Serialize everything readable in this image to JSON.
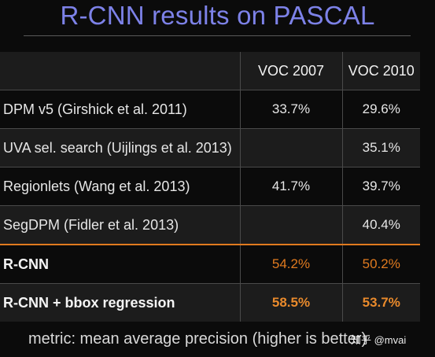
{
  "title": "R-CNN results on PASCAL",
  "table": {
    "header": {
      "method": "",
      "voc2007": "VOC 2007",
      "voc2010": "VOC 2010"
    },
    "rows": [
      {
        "method": "DPM v5 (Girshick et al. 2011)",
        "voc2007": "33.7%",
        "voc2010": "29.6%"
      },
      {
        "method": "UVA sel. search (Uijlings et al. 2013)",
        "voc2007": "",
        "voc2010": "35.1%"
      },
      {
        "method": "Regionlets (Wang et al. 2013)",
        "voc2007": "41.7%",
        "voc2010": "39.7%"
      },
      {
        "method": "SegDPM (Fidler et al. 2013)",
        "voc2007": "",
        "voc2010": "40.4%"
      },
      {
        "method": "R-CNN",
        "voc2007": "54.2%",
        "voc2010": "50.2%"
      },
      {
        "method": "R-CNN + bbox regression",
        "voc2007": "58.5%",
        "voc2010": "53.7%"
      }
    ]
  },
  "footnote": "metric: mean average precision (higher is better)",
  "watermark": "知乎 @mvai",
  "colors": {
    "title": "#7d82e8",
    "highlight": "#e07a1f",
    "background": "#0b0b0b"
  }
}
